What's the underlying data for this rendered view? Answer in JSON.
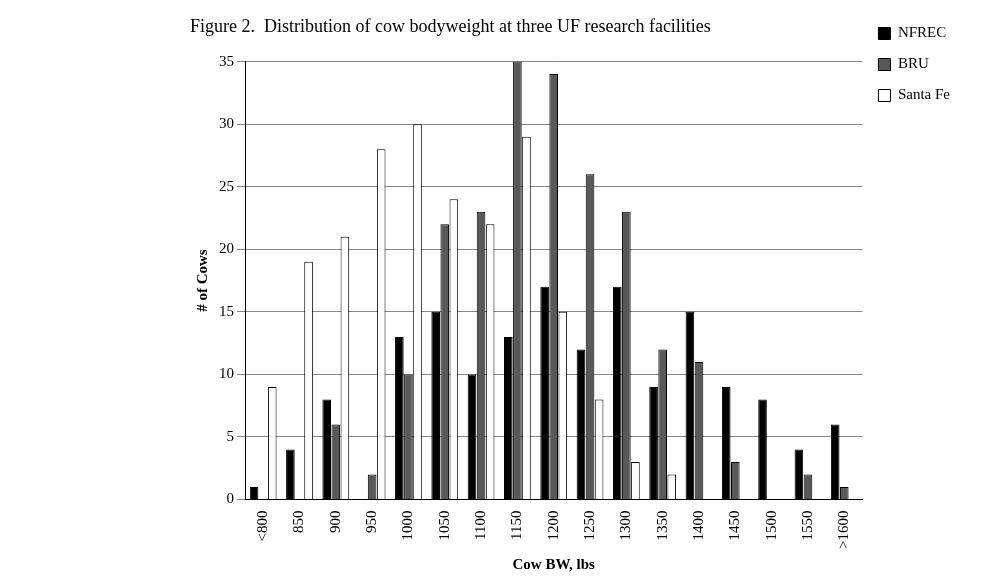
{
  "chart_data": {
    "type": "bar",
    "title": "Figure 2.  Distribution of cow bodyweight at three UF research facilities",
    "x_label": "Cow BW, lbs",
    "y_label": "# of Cows",
    "categories": [
      "<800",
      "850",
      "900",
      "950",
      "1000",
      "1050",
      "1100",
      "1150",
      "1200",
      "1250",
      "1300",
      "1350",
      "1400",
      "1450",
      "1500",
      "1550",
      ">1600"
    ],
    "series": [
      {
        "name": "NFREC",
        "color": "#000000",
        "values": [
          1,
          4,
          8,
          0,
          13,
          15,
          10,
          13,
          17,
          12,
          17,
          9,
          15,
          9,
          8,
          4,
          6
        ]
      },
      {
        "name": "BRU",
        "color": "#595959",
        "values": [
          0,
          0,
          6,
          2,
          10,
          22,
          23,
          35,
          34,
          26,
          23,
          12,
          11,
          3,
          0,
          2,
          1
        ]
      },
      {
        "name": "Santa Fe",
        "color": "#ffffff",
        "values": [
          9,
          19,
          21,
          28,
          30,
          24,
          22,
          29,
          15,
          8,
          3,
          2,
          0,
          0,
          0,
          0,
          0
        ]
      }
    ],
    "ylim": [
      0,
      35
    ],
    "yticks": [
      0,
      5,
      10,
      15,
      20,
      25,
      30,
      35
    ],
    "grid": true,
    "legend": "right"
  }
}
